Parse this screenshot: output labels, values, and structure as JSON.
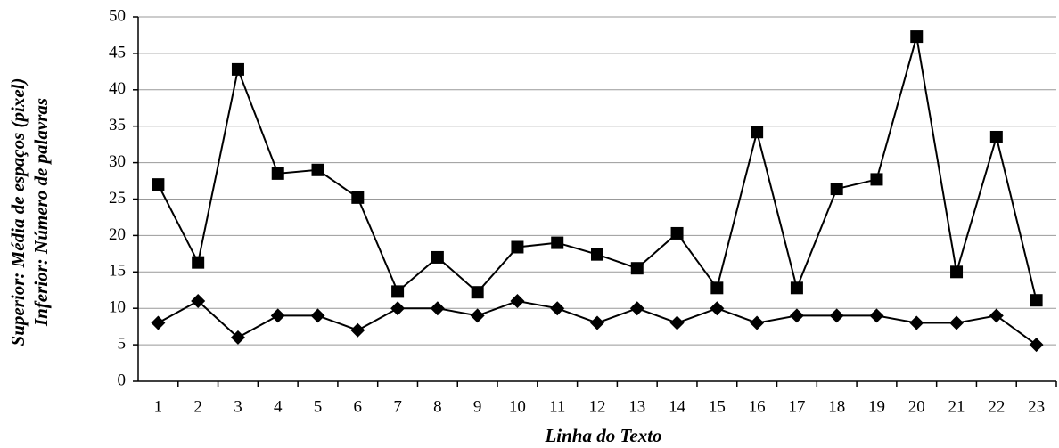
{
  "chart_data": {
    "type": "line",
    "y_label": [
      "Superior: Média de espaços (pixel)",
      "Inferior: Número de palavras"
    ],
    "x_label": "Linha do Texto",
    "categories": [
      "1",
      "2",
      "3",
      "4",
      "5",
      "6",
      "7",
      "8",
      "9",
      "10",
      "11",
      "12",
      "13",
      "14",
      "15",
      "16",
      "17",
      "18",
      "19",
      "20",
      "21",
      "22",
      "23"
    ],
    "series": [
      {
        "color": "#000000",
        "marker": "square",
        "values": [
          27,
          16.3,
          42.8,
          28.5,
          29,
          25.2,
          12.3,
          17,
          12.2,
          18.4,
          19,
          17.4,
          15.5,
          20.3,
          12.8,
          34.2,
          12.8,
          26.4,
          27.7,
          47.3,
          15,
          33.5,
          11.1
        ]
      },
      {
        "color": "#000000",
        "marker": "diamond",
        "values": [
          8,
          11,
          6,
          9,
          9,
          7,
          10,
          10,
          9,
          11,
          10,
          8,
          10,
          8,
          10,
          8,
          9,
          9,
          9,
          8,
          8,
          9,
          5
        ]
      }
    ],
    "ylim": [
      0,
      50
    ],
    "yticks": [
      0,
      5,
      10,
      15,
      20,
      25,
      30,
      35,
      40,
      45,
      50
    ],
    "grid": true
  }
}
